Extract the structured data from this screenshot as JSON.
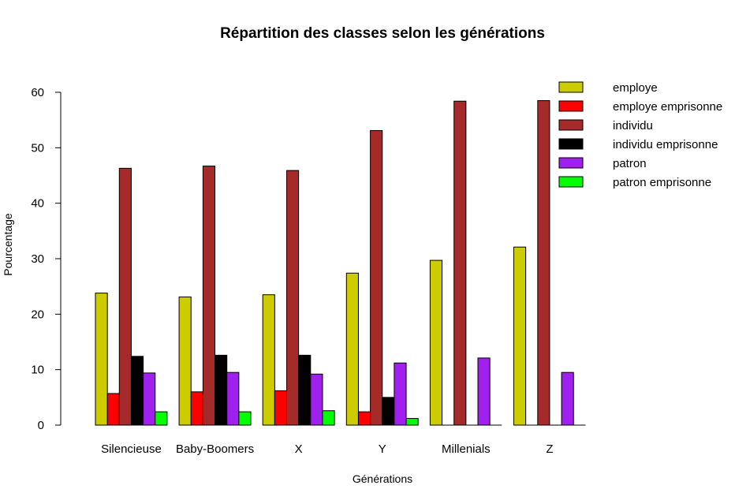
{
  "chart_data": {
    "type": "bar",
    "title": "Répartition des classes selon les générations",
    "xlabel": "Générations",
    "ylabel": "Pourcentage",
    "ylim": [
      0,
      60
    ],
    "yticks": [
      0,
      10,
      20,
      30,
      40,
      50,
      60
    ],
    "categories": [
      "Silencieuse",
      "Baby-Boomers",
      "X",
      "Y",
      "Millenials",
      "Z"
    ],
    "series": [
      {
        "name": "employe",
        "color": "#cccc00",
        "values": [
          23.8,
          23.1,
          23.5,
          27.4,
          29.7,
          32.1
        ]
      },
      {
        "name": "employe emprisonne",
        "color": "#ff0000",
        "values": [
          5.7,
          6.0,
          6.2,
          2.4,
          0,
          0
        ]
      },
      {
        "name": "individu",
        "color": "#a52a2a",
        "values": [
          46.3,
          46.7,
          45.9,
          53.1,
          58.4,
          58.5
        ]
      },
      {
        "name": "individu emprisonne",
        "color": "#000000",
        "values": [
          12.4,
          12.6,
          12.6,
          5.0,
          0,
          0
        ]
      },
      {
        "name": "patron",
        "color": "#a020f0",
        "values": [
          9.4,
          9.5,
          9.2,
          11.2,
          12.1,
          9.5
        ]
      },
      {
        "name": "patron emprisonne",
        "color": "#00ff00",
        "values": [
          2.4,
          2.4,
          2.6,
          1.2,
          0,
          0
        ]
      }
    ],
    "legend": "top-right",
    "grid": false
  }
}
